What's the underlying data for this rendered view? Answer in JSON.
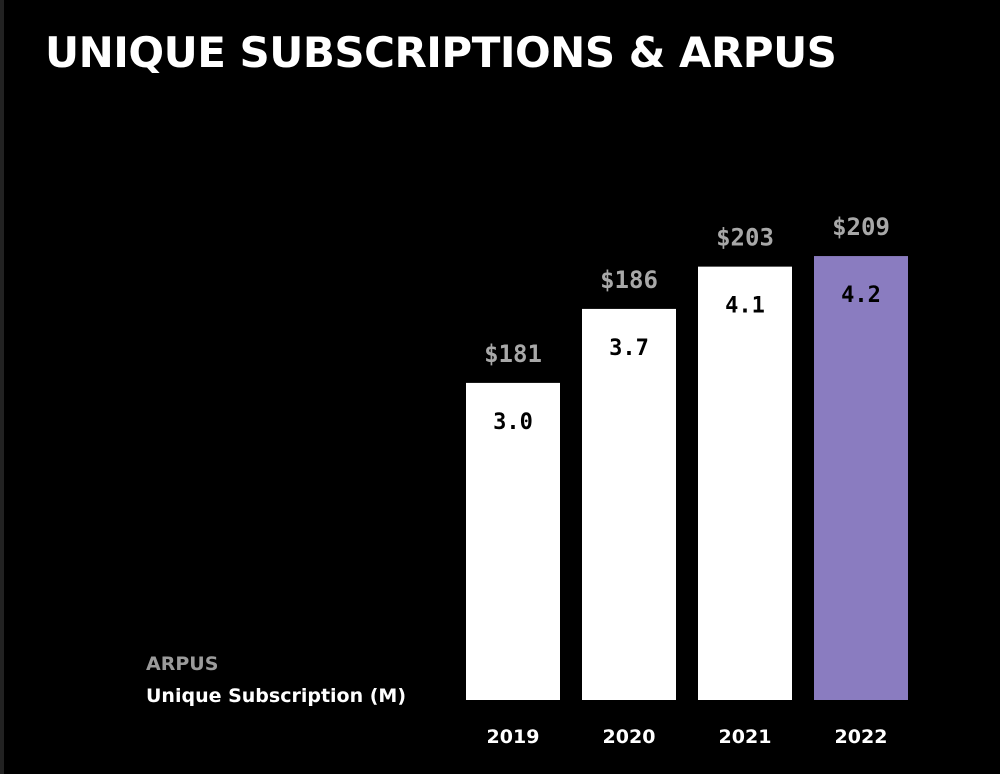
{
  "title": "UNIQUE SUBSCRIPTIONS & ARPUS",
  "legend": {
    "arpus": "ARPUS",
    "subscriptions": "Unique Subscription (M)"
  },
  "colors": {
    "background": "#000000",
    "bar_default": "#ffffff",
    "bar_highlight": "#8a7cc0",
    "arpu_text": "#a8a8a8"
  },
  "chart_data": {
    "type": "bar",
    "title": "UNIQUE SUBSCRIPTIONS & ARPUS",
    "categories": [
      "2019",
      "2020",
      "2021",
      "2022"
    ],
    "series": [
      {
        "name": "Unique Subscription (M)",
        "values": [
          3.0,
          3.7,
          4.1,
          4.2
        ],
        "value_labels": [
          "3.0",
          "3.7",
          "4.1",
          "4.2"
        ]
      },
      {
        "name": "ARPUS",
        "values": [
          181,
          186,
          203,
          209
        ],
        "value_labels": [
          "$181",
          "$186",
          "$203",
          "$209"
        ]
      }
    ],
    "highlight_category": "2022",
    "grid": false,
    "legend_position": "bottom-left"
  }
}
